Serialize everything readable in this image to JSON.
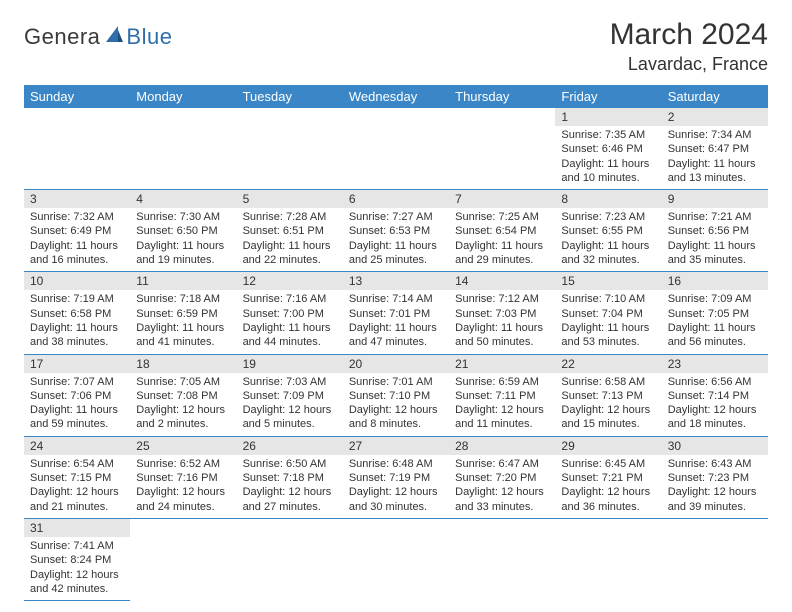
{
  "logo": {
    "text1": "Genera",
    "text2": "Blue"
  },
  "header": {
    "month_title": "March 2024",
    "location": "Lavardac, France"
  },
  "colors": {
    "header_bg": "#3b86c6",
    "header_text": "#ffffff",
    "daynum_bg": "#e6e6e6",
    "rule": "#3b86c6",
    "logo_blue": "#2f6ea8",
    "body_text": "#333333",
    "page_bg": "#ffffff"
  },
  "daynames": [
    "Sunday",
    "Monday",
    "Tuesday",
    "Wednesday",
    "Thursday",
    "Friday",
    "Saturday"
  ],
  "weeks": [
    [
      null,
      null,
      null,
      null,
      null,
      {
        "n": "1",
        "sr": "Sunrise: 7:35 AM",
        "ss": "Sunset: 6:46 PM",
        "d1": "Daylight: 11 hours",
        "d2": "and 10 minutes."
      },
      {
        "n": "2",
        "sr": "Sunrise: 7:34 AM",
        "ss": "Sunset: 6:47 PM",
        "d1": "Daylight: 11 hours",
        "d2": "and 13 minutes."
      }
    ],
    [
      {
        "n": "3",
        "sr": "Sunrise: 7:32 AM",
        "ss": "Sunset: 6:49 PM",
        "d1": "Daylight: 11 hours",
        "d2": "and 16 minutes."
      },
      {
        "n": "4",
        "sr": "Sunrise: 7:30 AM",
        "ss": "Sunset: 6:50 PM",
        "d1": "Daylight: 11 hours",
        "d2": "and 19 minutes."
      },
      {
        "n": "5",
        "sr": "Sunrise: 7:28 AM",
        "ss": "Sunset: 6:51 PM",
        "d1": "Daylight: 11 hours",
        "d2": "and 22 minutes."
      },
      {
        "n": "6",
        "sr": "Sunrise: 7:27 AM",
        "ss": "Sunset: 6:53 PM",
        "d1": "Daylight: 11 hours",
        "d2": "and 25 minutes."
      },
      {
        "n": "7",
        "sr": "Sunrise: 7:25 AM",
        "ss": "Sunset: 6:54 PM",
        "d1": "Daylight: 11 hours",
        "d2": "and 29 minutes."
      },
      {
        "n": "8",
        "sr": "Sunrise: 7:23 AM",
        "ss": "Sunset: 6:55 PM",
        "d1": "Daylight: 11 hours",
        "d2": "and 32 minutes."
      },
      {
        "n": "9",
        "sr": "Sunrise: 7:21 AM",
        "ss": "Sunset: 6:56 PM",
        "d1": "Daylight: 11 hours",
        "d2": "and 35 minutes."
      }
    ],
    [
      {
        "n": "10",
        "sr": "Sunrise: 7:19 AM",
        "ss": "Sunset: 6:58 PM",
        "d1": "Daylight: 11 hours",
        "d2": "and 38 minutes."
      },
      {
        "n": "11",
        "sr": "Sunrise: 7:18 AM",
        "ss": "Sunset: 6:59 PM",
        "d1": "Daylight: 11 hours",
        "d2": "and 41 minutes."
      },
      {
        "n": "12",
        "sr": "Sunrise: 7:16 AM",
        "ss": "Sunset: 7:00 PM",
        "d1": "Daylight: 11 hours",
        "d2": "and 44 minutes."
      },
      {
        "n": "13",
        "sr": "Sunrise: 7:14 AM",
        "ss": "Sunset: 7:01 PM",
        "d1": "Daylight: 11 hours",
        "d2": "and 47 minutes."
      },
      {
        "n": "14",
        "sr": "Sunrise: 7:12 AM",
        "ss": "Sunset: 7:03 PM",
        "d1": "Daylight: 11 hours",
        "d2": "and 50 minutes."
      },
      {
        "n": "15",
        "sr": "Sunrise: 7:10 AM",
        "ss": "Sunset: 7:04 PM",
        "d1": "Daylight: 11 hours",
        "d2": "and 53 minutes."
      },
      {
        "n": "16",
        "sr": "Sunrise: 7:09 AM",
        "ss": "Sunset: 7:05 PM",
        "d1": "Daylight: 11 hours",
        "d2": "and 56 minutes."
      }
    ],
    [
      {
        "n": "17",
        "sr": "Sunrise: 7:07 AM",
        "ss": "Sunset: 7:06 PM",
        "d1": "Daylight: 11 hours",
        "d2": "and 59 minutes."
      },
      {
        "n": "18",
        "sr": "Sunrise: 7:05 AM",
        "ss": "Sunset: 7:08 PM",
        "d1": "Daylight: 12 hours",
        "d2": "and 2 minutes."
      },
      {
        "n": "19",
        "sr": "Sunrise: 7:03 AM",
        "ss": "Sunset: 7:09 PM",
        "d1": "Daylight: 12 hours",
        "d2": "and 5 minutes."
      },
      {
        "n": "20",
        "sr": "Sunrise: 7:01 AM",
        "ss": "Sunset: 7:10 PM",
        "d1": "Daylight: 12 hours",
        "d2": "and 8 minutes."
      },
      {
        "n": "21",
        "sr": "Sunrise: 6:59 AM",
        "ss": "Sunset: 7:11 PM",
        "d1": "Daylight: 12 hours",
        "d2": "and 11 minutes."
      },
      {
        "n": "22",
        "sr": "Sunrise: 6:58 AM",
        "ss": "Sunset: 7:13 PM",
        "d1": "Daylight: 12 hours",
        "d2": "and 15 minutes."
      },
      {
        "n": "23",
        "sr": "Sunrise: 6:56 AM",
        "ss": "Sunset: 7:14 PM",
        "d1": "Daylight: 12 hours",
        "d2": "and 18 minutes."
      }
    ],
    [
      {
        "n": "24",
        "sr": "Sunrise: 6:54 AM",
        "ss": "Sunset: 7:15 PM",
        "d1": "Daylight: 12 hours",
        "d2": "and 21 minutes."
      },
      {
        "n": "25",
        "sr": "Sunrise: 6:52 AM",
        "ss": "Sunset: 7:16 PM",
        "d1": "Daylight: 12 hours",
        "d2": "and 24 minutes."
      },
      {
        "n": "26",
        "sr": "Sunrise: 6:50 AM",
        "ss": "Sunset: 7:18 PM",
        "d1": "Daylight: 12 hours",
        "d2": "and 27 minutes."
      },
      {
        "n": "27",
        "sr": "Sunrise: 6:48 AM",
        "ss": "Sunset: 7:19 PM",
        "d1": "Daylight: 12 hours",
        "d2": "and 30 minutes."
      },
      {
        "n": "28",
        "sr": "Sunrise: 6:47 AM",
        "ss": "Sunset: 7:20 PM",
        "d1": "Daylight: 12 hours",
        "d2": "and 33 minutes."
      },
      {
        "n": "29",
        "sr": "Sunrise: 6:45 AM",
        "ss": "Sunset: 7:21 PM",
        "d1": "Daylight: 12 hours",
        "d2": "and 36 minutes."
      },
      {
        "n": "30",
        "sr": "Sunrise: 6:43 AM",
        "ss": "Sunset: 7:23 PM",
        "d1": "Daylight: 12 hours",
        "d2": "and 39 minutes."
      }
    ],
    [
      {
        "n": "31",
        "sr": "Sunrise: 7:41 AM",
        "ss": "Sunset: 8:24 PM",
        "d1": "Daylight: 12 hours",
        "d2": "and 42 minutes."
      },
      null,
      null,
      null,
      null,
      null,
      null
    ]
  ]
}
